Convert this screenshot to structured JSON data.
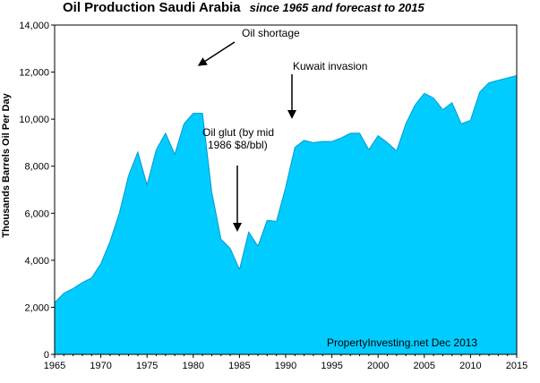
{
  "chart_data": {
    "type": "area",
    "title": "Oil Production Saudi Arabia",
    "subtitle": "since 1965 and forecast to 2015",
    "ylabel": "Thousands Barrels Oil Per Day",
    "xlabel": "",
    "xlim": [
      1965,
      2015
    ],
    "ylim": [
      0,
      14000
    ],
    "x_ticks": [
      1965,
      1970,
      1975,
      1980,
      1985,
      1990,
      1995,
      2000,
      2005,
      2010,
      2015
    ],
    "y_ticks": [
      "0",
      "2,000",
      "4,000",
      "6,000",
      "8,000",
      "10,000",
      "12,000",
      "14,000"
    ],
    "y_tick_values": [
      0,
      2000,
      4000,
      6000,
      8000,
      10000,
      12000,
      14000
    ],
    "grid": false,
    "fill_color": "#00ccff",
    "series": [
      {
        "x": [
          1965,
          1966,
          1967,
          1968,
          1969,
          1970,
          1971,
          1972,
          1973,
          1974,
          1975,
          1976,
          1977,
          1978,
          1979,
          1980,
          1981,
          1982,
          1983,
          1984,
          1985,
          1986,
          1987,
          1988,
          1989,
          1990,
          1991,
          1992,
          1993,
          1994,
          1995,
          1996,
          1997,
          1998,
          1999,
          2000,
          2001,
          2002,
          2003,
          2004,
          2005,
          2006,
          2007,
          2008,
          2009,
          2010,
          2011,
          2012,
          2013,
          2014,
          2015
        ],
        "values": [
          2200,
          2600,
          2800,
          3050,
          3250,
          3850,
          4800,
          6000,
          7600,
          8600,
          7200,
          8700,
          9400,
          8500,
          9800,
          10250,
          10250,
          6900,
          4900,
          4500,
          3600,
          5200,
          4600,
          5700,
          5650,
          7100,
          8800,
          9100,
          9000,
          9050,
          9050,
          9200,
          9400,
          9400,
          8700,
          9300,
          9000,
          8650,
          9800,
          10600,
          11100,
          10900,
          10400,
          10700,
          9800,
          9950,
          11150,
          11550,
          11650,
          11750,
          11850
        ]
      }
    ],
    "annotations": [
      {
        "text": "Oil shortage"
      },
      {
        "text": "Kuwait invasion"
      },
      {
        "line1": "Oil glut (by mid",
        "line2": "1986 $8/bbl)"
      }
    ],
    "credit": "PropertyInvesting.net  Dec 2013"
  }
}
